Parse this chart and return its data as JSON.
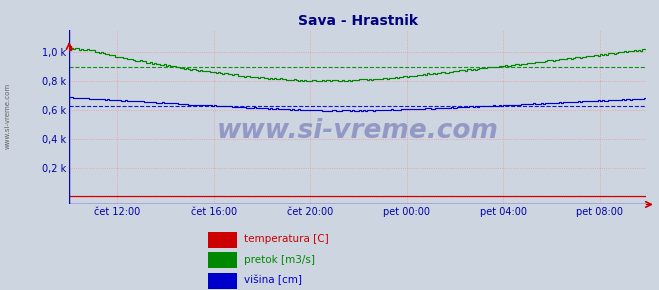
{
  "title": "Sava - Hrastnik",
  "title_color": "#000080",
  "bg_color": "#ccd5e0",
  "plot_bg_color": "#ccd5e0",
  "grid_color": "#ff8888",
  "xlabel_color": "#0000aa",
  "ylabel_color": "#0000aa",
  "ytick_labels": [
    "",
    "0,2 k",
    "0,4 k",
    "0,6 k",
    "0,8 k",
    "1,0 k"
  ],
  "ytick_vals": [
    0,
    200,
    400,
    600,
    800,
    1000
  ],
  "ylim": [
    -55,
    1150
  ],
  "n_points": 288,
  "xtick_positions": [
    24,
    72,
    120,
    168,
    216,
    264
  ],
  "xtick_labels": [
    "čet 12:00",
    "čet 16:00",
    "čet 20:00",
    "pet 00:00",
    "pet 04:00",
    "pet 08:00"
  ],
  "watermark": "www.si-vreme.com",
  "watermark_color": "#000080",
  "line_green_color": "#008800",
  "line_blue_color": "#0000cc",
  "line_red_color": "#cc0000",
  "avg_green": 900,
  "avg_blue": 625,
  "legend_items": [
    {
      "label": "temperatura [C]",
      "color": "#cc0000"
    },
    {
      "label": "pretok [m3/s]",
      "color": "#008800"
    },
    {
      "label": "višina [cm]",
      "color": "#0000cc"
    }
  ],
  "side_label": "www.si-vreme.com"
}
